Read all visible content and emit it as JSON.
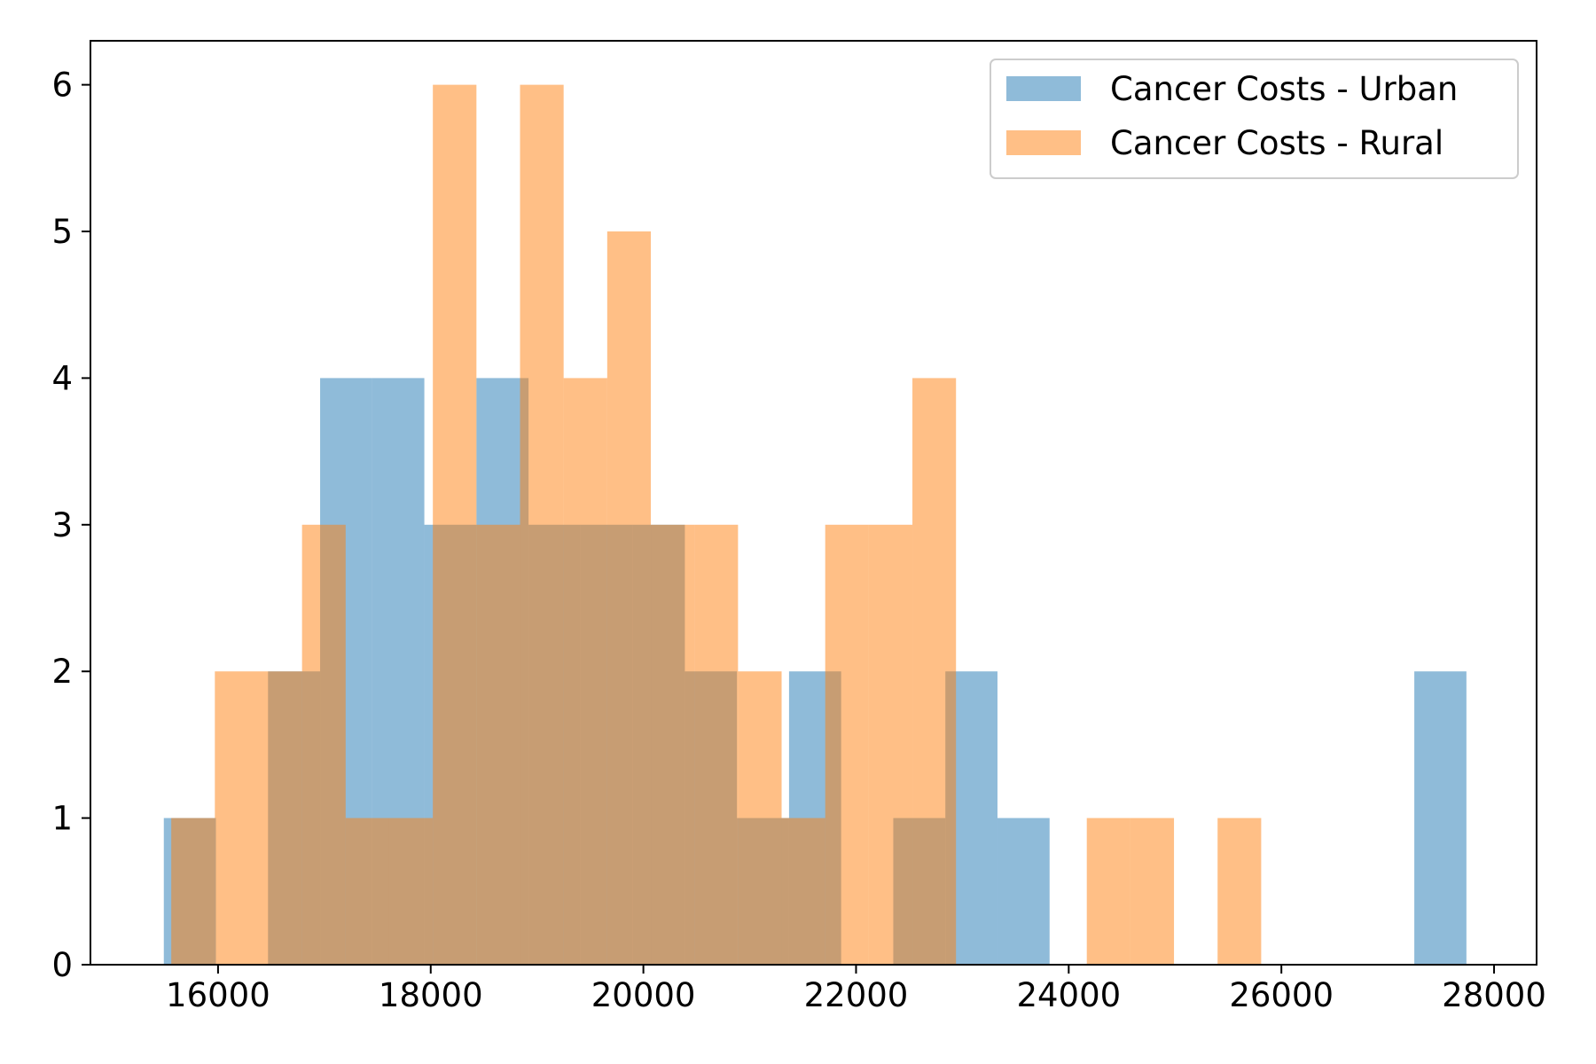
{
  "chart_data": {
    "type": "bar",
    "subtype": "overlapping-histogram",
    "title": "",
    "xlabel": "",
    "ylabel": "",
    "xlim": [
      14800,
      28400
    ],
    "ylim": [
      0,
      6.3
    ],
    "xticks": [
      16000,
      18000,
      20000,
      22000,
      24000,
      26000,
      28000
    ],
    "yticks": [
      0,
      1,
      2,
      3,
      4,
      5,
      6
    ],
    "grid": false,
    "legend_position": "top-right",
    "series": [
      {
        "name": "Cancer Costs - Urban",
        "color": "#1f77b4",
        "alpha": 0.5,
        "bins": [
          {
            "x0": 15490,
            "x1": 15980,
            "count": 1
          },
          {
            "x0": 15980,
            "x1": 16470,
            "count": 0
          },
          {
            "x0": 16470,
            "x1": 16960,
            "count": 2
          },
          {
            "x0": 16960,
            "x1": 17450,
            "count": 4
          },
          {
            "x0": 17450,
            "x1": 17940,
            "count": 4
          },
          {
            "x0": 17940,
            "x1": 18430,
            "count": 3
          },
          {
            "x0": 18430,
            "x1": 18920,
            "count": 4
          },
          {
            "x0": 18920,
            "x1": 19410,
            "count": 3
          },
          {
            "x0": 19410,
            "x1": 19900,
            "count": 3
          },
          {
            "x0": 19900,
            "x1": 20390,
            "count": 3
          },
          {
            "x0": 20390,
            "x1": 20880,
            "count": 2
          },
          {
            "x0": 20880,
            "x1": 21370,
            "count": 1
          },
          {
            "x0": 21370,
            "x1": 21860,
            "count": 2
          },
          {
            "x0": 21860,
            "x1": 22350,
            "count": 0
          },
          {
            "x0": 22350,
            "x1": 22840,
            "count": 1
          },
          {
            "x0": 22840,
            "x1": 23330,
            "count": 2
          },
          {
            "x0": 23330,
            "x1": 23820,
            "count": 1
          },
          {
            "x0": 27250,
            "x1": 27740,
            "count": 2
          }
        ]
      },
      {
        "name": "Cancer Costs - Rural",
        "color": "#ff7f0e",
        "alpha": 0.5,
        "bins": [
          {
            "x0": 15560,
            "x1": 15970,
            "count": 1
          },
          {
            "x0": 15970,
            "x1": 16380,
            "count": 2
          },
          {
            "x0": 16380,
            "x1": 16790,
            "count": 2
          },
          {
            "x0": 16790,
            "x1": 17200,
            "count": 3
          },
          {
            "x0": 17200,
            "x1": 17610,
            "count": 1
          },
          {
            "x0": 17610,
            "x1": 18020,
            "count": 1
          },
          {
            "x0": 18020,
            "x1": 18430,
            "count": 6
          },
          {
            "x0": 18430,
            "x1": 18840,
            "count": 3
          },
          {
            "x0": 18840,
            "x1": 19250,
            "count": 6
          },
          {
            "x0": 19250,
            "x1": 19660,
            "count": 4
          },
          {
            "x0": 19660,
            "x1": 20070,
            "count": 5
          },
          {
            "x0": 20070,
            "x1": 20480,
            "count": 3
          },
          {
            "x0": 20480,
            "x1": 20890,
            "count": 3
          },
          {
            "x0": 20890,
            "x1": 21300,
            "count": 2
          },
          {
            "x0": 21300,
            "x1": 21710,
            "count": 1
          },
          {
            "x0": 21710,
            "x1": 22120,
            "count": 3
          },
          {
            "x0": 22120,
            "x1": 22530,
            "count": 3
          },
          {
            "x0": 22530,
            "x1": 22940,
            "count": 4
          },
          {
            "x0": 22940,
            "x1": 23350,
            "count": 0
          },
          {
            "x0": 23350,
            "x1": 23760,
            "count": 0
          },
          {
            "x0": 23760,
            "x1": 24170,
            "count": 0
          },
          {
            "x0": 24170,
            "x1": 24580,
            "count": 1
          },
          {
            "x0": 24580,
            "x1": 24990,
            "count": 1
          },
          {
            "x0": 24990,
            "x1": 25400,
            "count": 0
          },
          {
            "x0": 25400,
            "x1": 25810,
            "count": 1
          }
        ]
      }
    ]
  }
}
